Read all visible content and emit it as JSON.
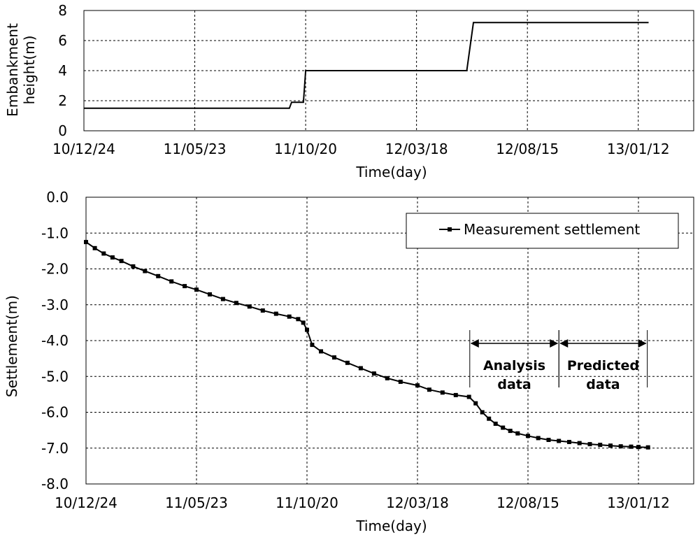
{
  "chart_data": [
    {
      "type": "line",
      "ylabel": "Embankment height(m)",
      "ylabel_lines": [
        "Embankment",
        "height(m)"
      ],
      "xlabel": "Time(day)",
      "x_tick_labels": [
        "10/12/24",
        "11/05/23",
        "11/10/20",
        "12/03/18",
        "12/08/15",
        "13/01/12"
      ],
      "xlim": [
        "2010-12-24",
        "2013-01-12"
      ],
      "ylim": [
        0,
        8
      ],
      "y_ticks": [
        0,
        2,
        4,
        6,
        8
      ],
      "y_tick_labels": [
        "0",
        "2",
        "4",
        "6",
        "8"
      ],
      "grid": true,
      "series": [
        {
          "x": [
            "2010-12-24",
            "2011-09-28",
            "2011-10-01",
            "2011-10-17",
            "2011-10-20",
            "2012-05-25",
            "2012-06-03",
            "2013-01-26"
          ],
          "y": [
            1.5,
            1.5,
            1.9,
            1.9,
            4.0,
            4.0,
            7.2,
            7.2
          ]
        }
      ]
    },
    {
      "type": "scatter",
      "ylabel": "Settlement(m)",
      "xlabel": "Time(day)",
      "x_tick_labels": [
        "10/12/24",
        "11/05/23",
        "11/10/20",
        "12/03/18",
        "12/08/15",
        "13/01/12"
      ],
      "xlim": [
        "2010-12-24",
        "2013-01-12"
      ],
      "ylim": [
        -8.0,
        0.0
      ],
      "y_ticks": [
        0,
        -1,
        -2,
        -3,
        -4,
        -5,
        -6,
        -7,
        -8
      ],
      "y_tick_labels": [
        "0.0",
        "-1.0",
        "-2.0",
        "-3.0",
        "-4.0",
        "-5.0",
        "-6.0",
        "-7.0",
        "-8.0"
      ],
      "grid": true,
      "legend": "top-right",
      "series": [
        {
          "name": "Measurement settlement",
          "x": [
            "2010-12-24",
            "2011-01-05",
            "2011-01-17",
            "2011-01-29",
            "2011-02-10",
            "2011-02-26",
            "2011-03-14",
            "2011-04-01",
            "2011-04-19",
            "2011-05-07",
            "2011-05-23",
            "2011-06-10",
            "2011-06-28",
            "2011-07-16",
            "2011-08-03",
            "2011-08-21",
            "2011-09-08",
            "2011-09-26",
            "2011-10-08",
            "2011-10-15",
            "2011-10-20",
            "2011-10-27",
            "2011-11-08",
            "2011-11-26",
            "2011-12-14",
            "2012-01-01",
            "2012-01-19",
            "2012-02-06",
            "2012-02-24",
            "2012-03-18",
            "2012-04-03",
            "2012-04-21",
            "2012-05-09",
            "2012-05-27",
            "2012-06-05",
            "2012-06-14",
            "2012-06-23",
            "2012-07-02",
            "2012-07-12",
            "2012-07-22",
            "2012-08-01",
            "2012-08-15",
            "2012-08-29",
            "2012-09-12",
            "2012-09-26",
            "2012-10-10",
            "2012-10-24",
            "2012-11-07",
            "2012-11-21",
            "2012-12-05",
            "2012-12-19",
            "2013-01-02",
            "2013-01-12",
            "2013-01-25"
          ],
          "y": [
            -1.25,
            -1.42,
            -1.57,
            -1.68,
            -1.78,
            -1.93,
            -2.06,
            -2.2,
            -2.35,
            -2.48,
            -2.58,
            -2.71,
            -2.84,
            -2.95,
            -3.05,
            -3.16,
            -3.25,
            -3.33,
            -3.4,
            -3.5,
            -3.7,
            -4.12,
            -4.3,
            -4.47,
            -4.62,
            -4.77,
            -4.92,
            -5.05,
            -5.15,
            -5.25,
            -5.37,
            -5.45,
            -5.52,
            -5.57,
            -5.75,
            -6.0,
            -6.18,
            -6.32,
            -6.43,
            -6.52,
            -6.59,
            -6.66,
            -6.72,
            -6.77,
            -6.8,
            -6.83,
            -6.86,
            -6.89,
            -6.91,
            -6.93,
            -6.95,
            -6.96,
            -6.97,
            -6.98
          ]
        }
      ],
      "annotations": [
        {
          "text_lines": [
            "Analysis",
            "data"
          ],
          "from": "2012-05-28",
          "to": "2012-09-26"
        },
        {
          "text_lines": [
            "Predicted",
            "data"
          ],
          "from": "2012-09-26",
          "to": "2013-01-24"
        }
      ]
    }
  ]
}
